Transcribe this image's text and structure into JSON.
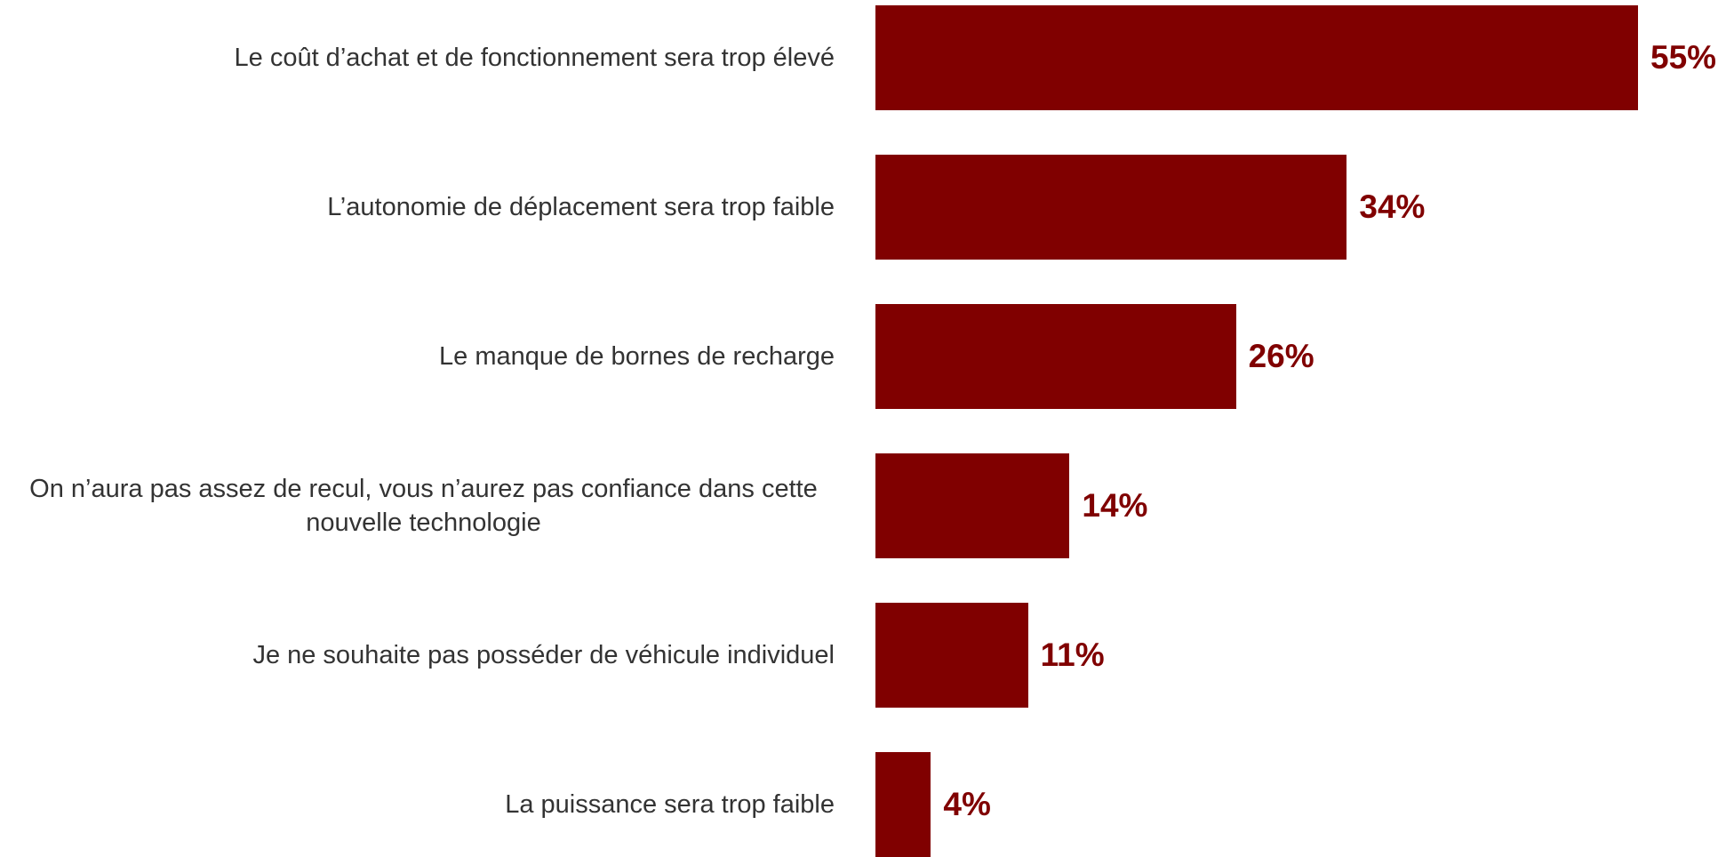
{
  "chart_data": {
    "type": "bar",
    "orientation": "horizontal",
    "categories": [
      "Le coût d’achat et de fonctionnement sera trop élevé",
      "L’autonomie de déplacement sera trop faible",
      "Le manque de bornes de recharge",
      "On n’aura pas assez de recul, vous n’aurez pas confiance dans cette nouvelle technologie",
      "Je ne souhaite pas posséder de véhicule individuel",
      "La puissance sera trop faible"
    ],
    "values": [
      55,
      34,
      26,
      14,
      11,
      4
    ],
    "value_labels": [
      "55%",
      "34%",
      "26%",
      "14%",
      "11%",
      "4%"
    ],
    "color": "#800000"
  }
}
